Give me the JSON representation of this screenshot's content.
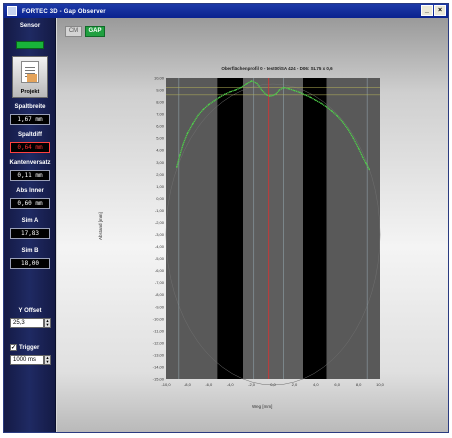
{
  "window": {
    "title": "FORTEC 3D - Gap Observer",
    "buttons": [
      "_",
      "×"
    ]
  },
  "sidebar": {
    "sensor_label": "Sensor",
    "projekt_label": "Projekt",
    "fields": [
      {
        "label": "Spaltbreite",
        "value": "1,67 mm",
        "alert": false
      },
      {
        "label": "Spaltdiff",
        "value": "0,64 mm",
        "alert": true
      },
      {
        "label": "Kantenversatz",
        "value": "0,11 mm",
        "alert": false
      },
      {
        "label": "Abs Inner",
        "value": "0,60 mm",
        "alert": false
      },
      {
        "label": "Sim A",
        "value": "17,83",
        "alert": false
      },
      {
        "label": "Sim B",
        "value": "18,00",
        "alert": false
      }
    ],
    "y_offset": {
      "label": "Y Offset",
      "value": "25,3"
    },
    "trigger": {
      "label": "Trigger",
      "checked": true,
      "value": "1000 ms"
    }
  },
  "tabs": [
    {
      "label": "CM",
      "active": false
    },
    {
      "label": "GAP",
      "active": true
    }
  ],
  "chart_data": {
    "type": "line",
    "title": "Oberflächenprofil 0 - test00\\SA 424 - D06: SL75 x 0,6",
    "xlabel": "Weg [mm]",
    "ylabel": "Abstand [mm]",
    "xlim": [
      -10.0,
      10.0
    ],
    "ylim": [
      -15.0,
      10.0
    ],
    "x_ticks": [
      "-10,0",
      "-8,0",
      "-6,0",
      "-4,0",
      "-2,0",
      "0,0",
      "2,0",
      "4,0",
      "6,0",
      "8,0",
      "10,0"
    ],
    "y_ticks": [
      "10,00",
      "9,00",
      "8,00",
      "7,00",
      "6,00",
      "5,00",
      "4,00",
      "3,00",
      "2,00",
      "1,00",
      "0,00",
      "-1,00",
      "-2,00",
      "-3,00",
      "-4,00",
      "-5,00",
      "-6,00",
      "-7,00",
      "-8,00",
      "-9,00",
      "-10,00",
      "-11,00",
      "-12,00",
      "-13,00",
      "-14,00",
      "-15,00"
    ],
    "vertical_lines": [
      -0.4
    ],
    "horizontal_lines": [
      9.2,
      8.6
    ],
    "dark_bands": [
      [
        -5.2,
        -2.8
      ],
      [
        2.8,
        5.0
      ]
    ],
    "series": [
      {
        "color": "#4fd04a",
        "x": [
          -9.0,
          -8.7,
          -8.4,
          -8.0,
          -7.5,
          -7.0,
          -6.5,
          -6.0,
          -5.5,
          -5.0,
          -4.5,
          -4.0,
          -3.5,
          -3.0,
          -2.5,
          -2.0,
          -1.5,
          -1.0,
          -0.6,
          -0.3,
          0.0,
          0.3,
          0.6,
          1.0,
          1.5,
          2.0,
          2.5,
          3.0,
          3.5,
          4.0,
          4.5,
          5.0,
          5.5,
          6.0,
          6.5,
          7.0,
          7.5,
          8.0,
          8.4,
          8.7,
          9.0
        ],
        "y": [
          2.6,
          3.6,
          4.5,
          5.4,
          6.2,
          6.9,
          7.4,
          7.8,
          8.1,
          8.4,
          8.65,
          8.85,
          9.0,
          9.2,
          9.5,
          9.75,
          9.55,
          8.95,
          8.6,
          8.5,
          8.55,
          8.7,
          9.0,
          9.2,
          9.1,
          8.95,
          8.8,
          8.6,
          8.4,
          8.15,
          7.9,
          7.6,
          7.25,
          6.85,
          6.35,
          5.75,
          5.0,
          4.15,
          3.4,
          2.9,
          2.4
        ]
      }
    ]
  }
}
